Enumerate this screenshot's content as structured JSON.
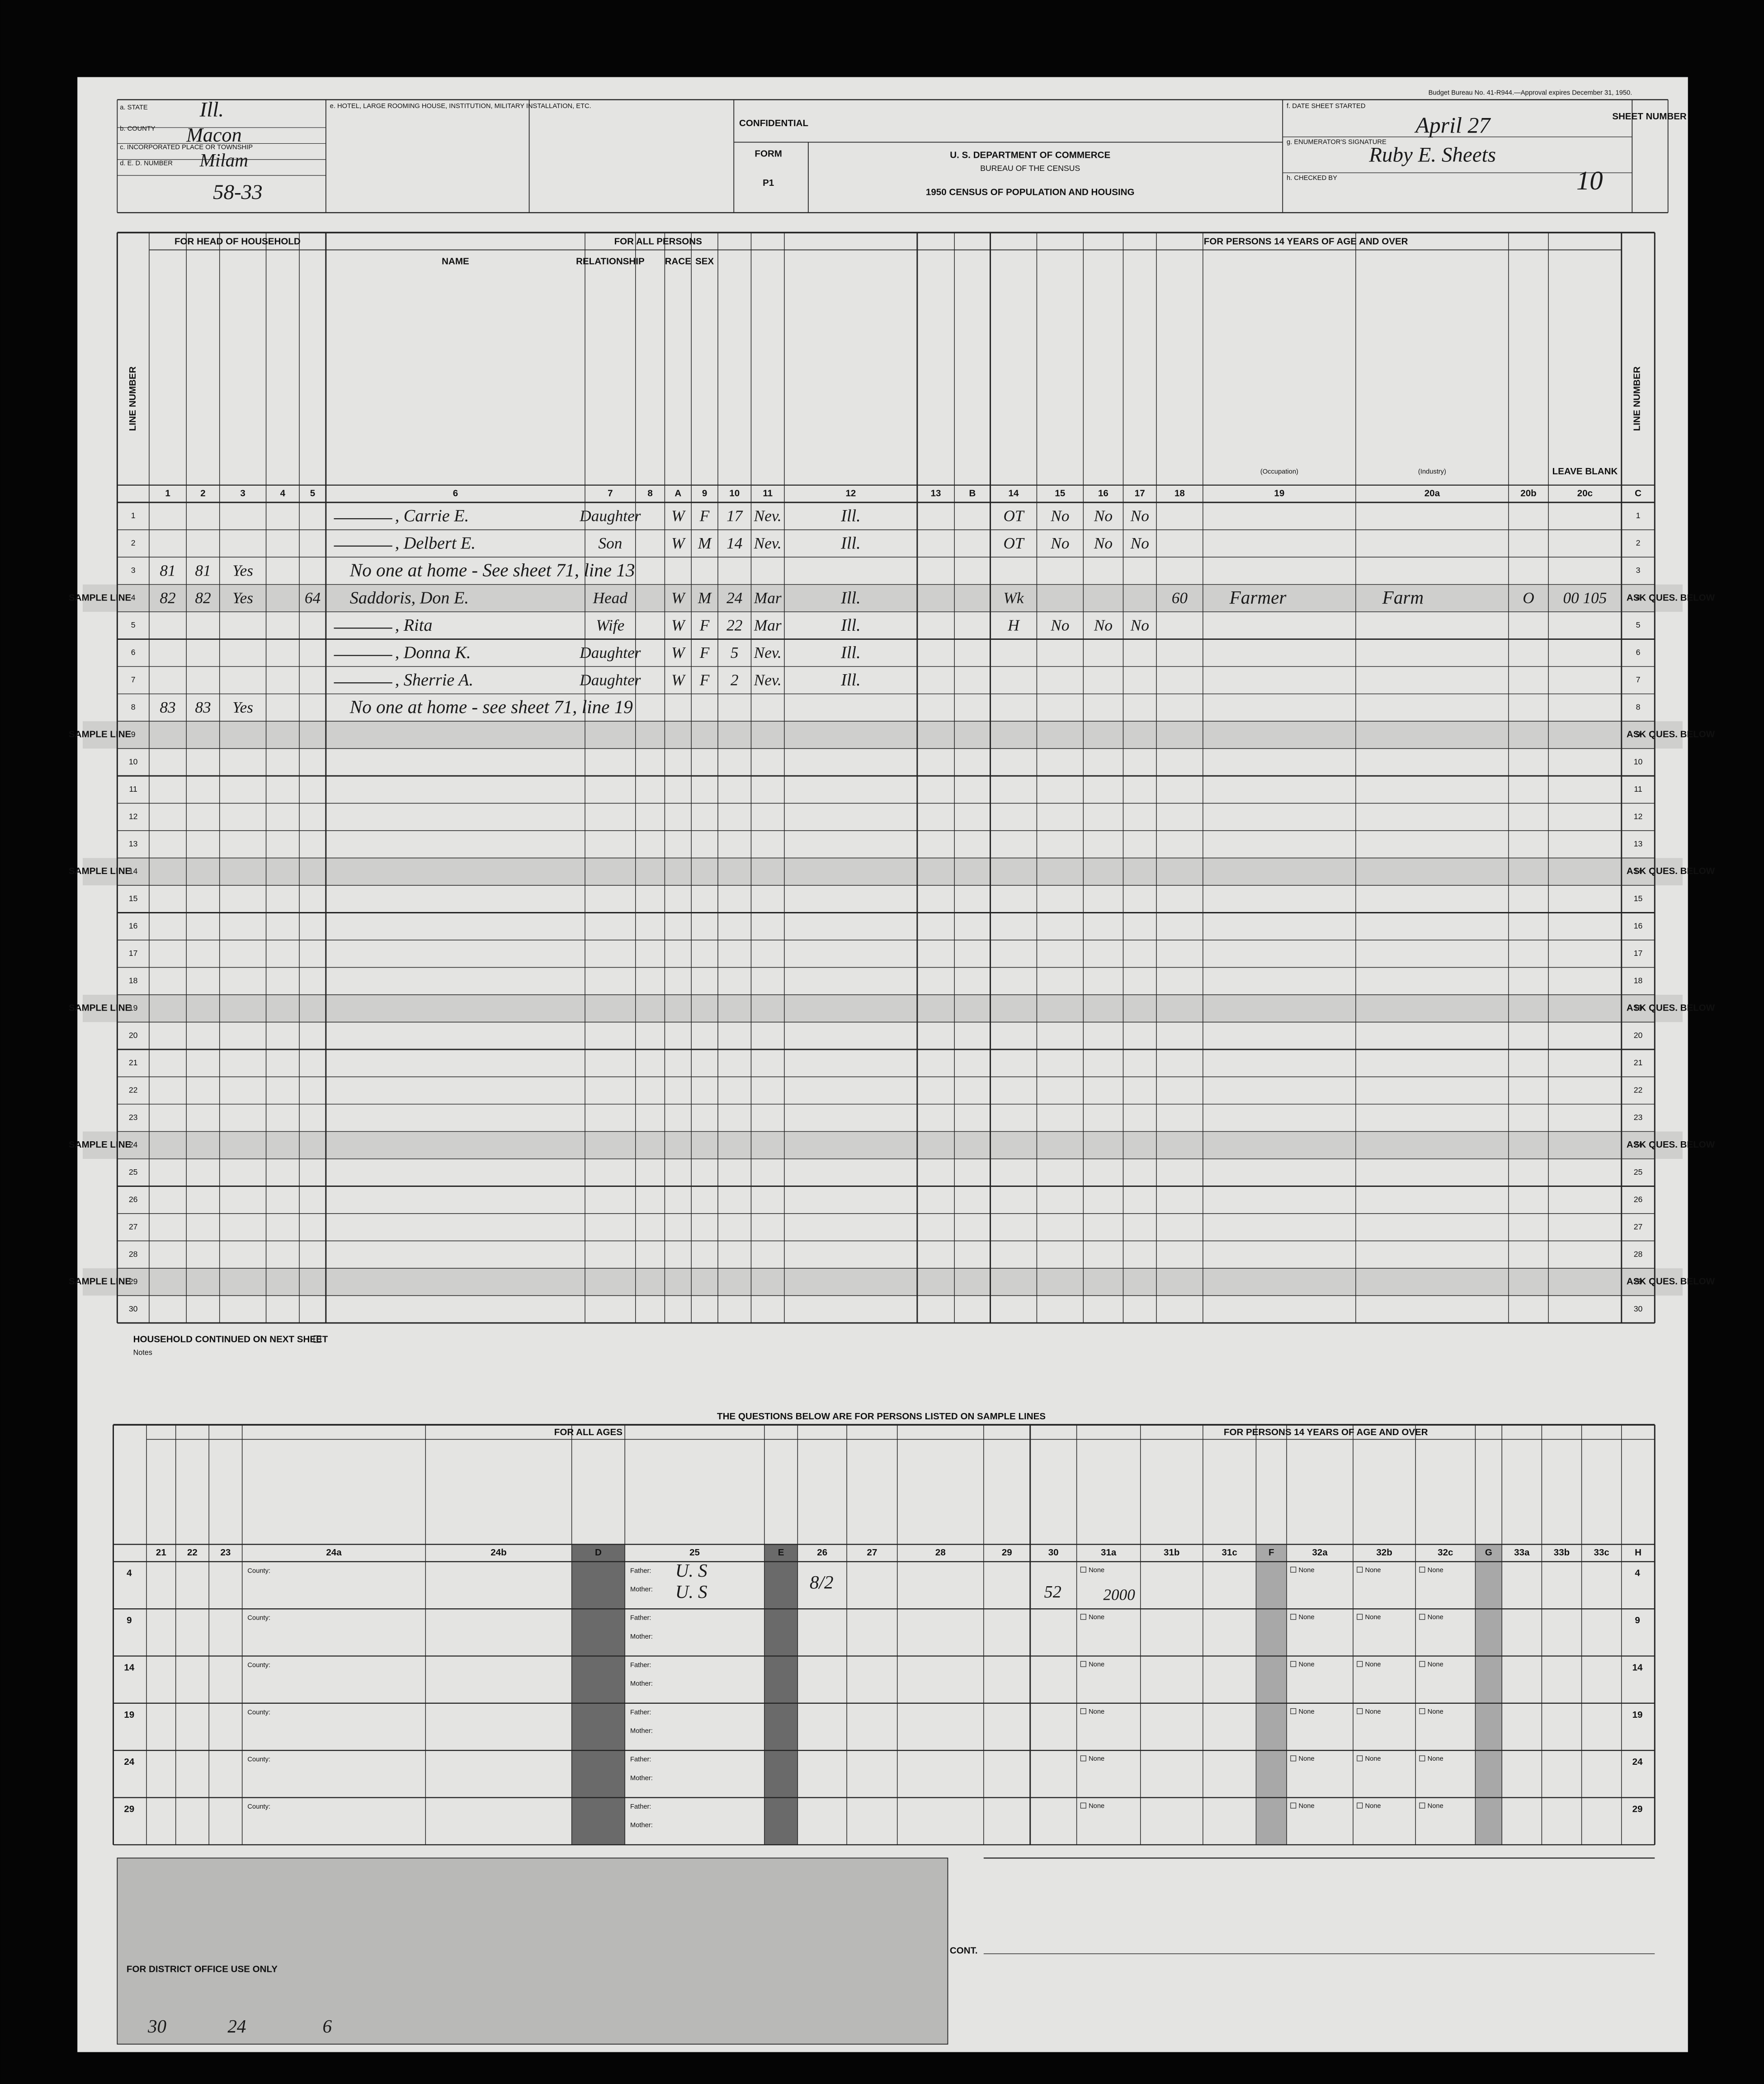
{
  "header": {
    "state_label": "a. STATE",
    "state": "Ill.",
    "county_label": "b. COUNTY",
    "county": "Macon",
    "township_label": "c. INCORPORATED PLACE OR TOWNSHIP",
    "township": "Milam",
    "ed_label": "d. E. D. NUMBER",
    "ed": "58-33",
    "hotel_label": "e. HOTEL, LARGE ROOMING HOUSE, INSTITUTION, MILITARY INSTALLATION, ETC.",
    "confidential": "CONFIDENTIAL",
    "form_label": "FORM",
    "form": "P1",
    "department": "U. S. DEPARTMENT OF COMMERCE",
    "bureau": "BUREAU OF THE CENSUS",
    "title": "1950 CENSUS OF POPULATION AND HOUSING",
    "date_label": "f. DATE SHEET STARTED",
    "date": "April 27",
    "enumerator_label": "g. ENUMERATOR'S SIGNATURE",
    "enumerator": "Ruby E. Sheets",
    "checked_label": "h. CHECKED BY",
    "sheet_label": "SHEET NUMBER",
    "sheet": "10",
    "budget": "Budget Bureau No. 41-R944.—Approval expires December 31, 1950."
  },
  "table": {
    "sections": [
      "FOR HEAD OF HOUSEHOLD",
      "FOR ALL PERSONS",
      "FOR PERSONS 14 YEARS OF AGE AND OVER"
    ],
    "name_heading": "NAME",
    "relationship_heading": "RELATIONSHIP",
    "race_heading": "RACE",
    "sex_heading": "SEX",
    "occupation_heading": "(Occupation)",
    "industry_heading": "(Industry)",
    "leave_blank": "LEAVE BLANK",
    "line_number": "LINE NUMBER",
    "columns": [
      "1",
      "2",
      "3",
      "4",
      "5",
      "6",
      "7",
      "8",
      "A",
      "9",
      "10",
      "11",
      "12",
      "13",
      "B",
      "14",
      "15",
      "16",
      "17",
      "18",
      "19",
      "20a",
      "20b",
      "20c",
      "C"
    ],
    "line_numbers": [
      1,
      2,
      3,
      4,
      5,
      6,
      7,
      8,
      9,
      10,
      11,
      12,
      13,
      14,
      15,
      16,
      17,
      18,
      19,
      20,
      21,
      22,
      23,
      24,
      25,
      26,
      27,
      28,
      29,
      30
    ],
    "sample_label": "SAMPLE LINE",
    "ask_label": "ASK QUES. BELOW",
    "sample_lines": [
      4,
      9,
      14,
      19,
      24,
      29
    ],
    "rows": [
      {
        "name": ", Carrie E.",
        "relationship": "Daughter",
        "race": "W",
        "sex": "F",
        "age": "17",
        "marital": "Nev.",
        "birthplace": "Ill.",
        "c15": "OT",
        "c16": "No",
        "c17": "No",
        "c18": "No"
      },
      {
        "name": ", Delbert E.",
        "relationship": "Son",
        "race": "W",
        "sex": "M",
        "age": "14",
        "marital": "Nev.",
        "birthplace": "Ill.",
        "c15": "OT",
        "c16": "No",
        "c17": "No",
        "c18": "No"
      },
      {
        "house": "81",
        "serial": "81",
        "farm": "Yes",
        "name": "No one at home - See sheet 71, line 13"
      },
      {
        "house": "82",
        "serial": "82",
        "farm": "Yes",
        "agri": "64",
        "name": "Saddoris, Don E.",
        "relationship": "Head",
        "race": "W",
        "sex": "M",
        "age": "24",
        "marital": "Mar",
        "birthplace": "Ill.",
        "c15": "Wk",
        "hours": "60",
        "occupation": "Farmer",
        "industry": "Farm",
        "class": "O",
        "code": "00 105"
      },
      {
        "name": ", Rita",
        "relationship": "Wife",
        "race": "W",
        "sex": "F",
        "age": "22",
        "marital": "Mar",
        "birthplace": "Ill.",
        "c15": "H",
        "c16": "No",
        "c17": "No",
        "c18": "No"
      },
      {
        "name": ", Donna K.",
        "relationship": "Daughter",
        "race": "W",
        "sex": "F",
        "age": "5",
        "marital": "Nev.",
        "birthplace": "Ill."
      },
      {
        "name": ", Sherrie A.",
        "relationship": "Daughter",
        "race": "W",
        "sex": "F",
        "age": "2",
        "marital": "Nev.",
        "birthplace": "Ill."
      },
      {
        "house": "83",
        "serial": "83",
        "farm": "Yes",
        "name": "No one at home - see sheet 71, line 19"
      }
    ]
  },
  "bottom": {
    "title": "THE QUESTIONS BELOW ARE FOR PERSONS LISTED ON SAMPLE LINES",
    "sections": [
      "FOR ALL AGES",
      "FOR PERSONS 14 YEARS OF AGE AND OVER"
    ],
    "columns": [
      "21",
      "22",
      "23",
      "24a",
      "24b",
      "D",
      "25",
      "E",
      "26",
      "27",
      "28",
      "29",
      "30",
      "31a",
      "31b",
      "31c",
      "F",
      "32a",
      "32b",
      "32c",
      "G",
      "33a",
      "33b",
      "33c",
      "H"
    ],
    "county_label": "County:",
    "father_label": "Father:",
    "mother_label": "Mother:",
    "none_label": "None",
    "entry": {
      "father": "U. S",
      "mother": "U. S",
      "grade": "8/2",
      "weeks": "52",
      "income": "2000"
    }
  },
  "footer": {
    "continued": "HOUSEHOLD CONTINUED ON NEXT SHEET",
    "notes": "Notes",
    "district": "FOR DISTRICT OFFICE USE ONLY",
    "counts": [
      "30",
      "24",
      "6"
    ],
    "cont": "CONT."
  }
}
